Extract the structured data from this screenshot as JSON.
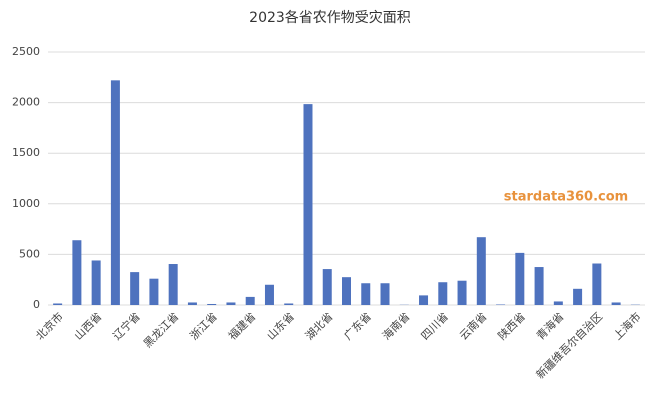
{
  "chart_data": {
    "type": "bar",
    "title": "2023各省农作物受灾面积",
    "categories": [
      "北京市",
      null,
      "山西省",
      null,
      "辽宁省",
      null,
      "黑龙江省",
      null,
      "浙江省",
      null,
      "福建省",
      null,
      "山东省",
      null,
      "湖北省",
      null,
      "广东省",
      null,
      "海南省",
      null,
      "四川省",
      null,
      "云南省",
      null,
      "陕西省",
      null,
      "青海省",
      null,
      "新疆维吾尔自治区",
      null,
      "上海市"
    ],
    "values": [
      15,
      640,
      440,
      2220,
      325,
      260,
      405,
      25,
      10,
      25,
      80,
      200,
      15,
      1985,
      355,
      275,
      215,
      215,
      2,
      95,
      225,
      240,
      670,
      5,
      515,
      375,
      35,
      160,
      410,
      25,
      3
    ],
    "color": "#4e72be",
    "ylim": [
      0,
      2500
    ],
    "yticks": [
      0,
      500,
      1000,
      1500,
      2000,
      2500
    ],
    "grid": true,
    "watermark": "stardata360.com"
  }
}
